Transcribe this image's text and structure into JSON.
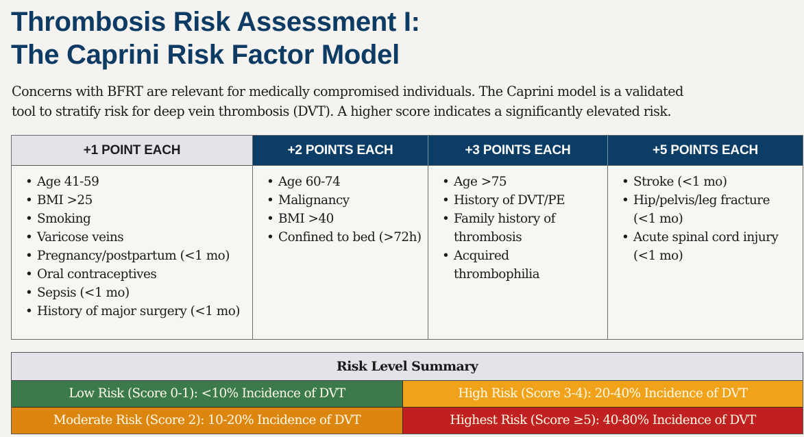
{
  "title": {
    "line1": "Thrombosis Risk Assessment I:",
    "line2": "The Caprini Risk Factor Model"
  },
  "intro": {
    "line1": "Concerns with BFRT are relevant for medically compromised individuals. The Caprini model is a validated",
    "line2": "tool to stratify risk for deep vein thrombosis (DVT). A higher score indicates a significantly elevated risk."
  },
  "factors": {
    "columns": [
      {
        "header": "+1 POINT EACH",
        "items": [
          "Age 41-59",
          "BMI >25",
          "Smoking",
          "Varicose veins",
          "Pregnancy/postpartum (<1 mo)",
          "Oral contraceptives",
          "Sepsis (<1 mo)",
          "History of major surgery (<1 mo)"
        ]
      },
      {
        "header": "+2 POINTS EACH",
        "items": [
          "Age 60-74",
          "Malignancy",
          "BMI >40",
          "Confined to bed (>72h)"
        ]
      },
      {
        "header": "+3 POINTS EACH",
        "items": [
          "Age >75",
          "History of DVT/PE",
          "Family history of thrombosis",
          "Acquired thrombophilia"
        ]
      },
      {
        "header": "+5 POINTS EACH",
        "items": [
          "Stroke (<1 mo)",
          "Hip/pelvis/leg fracture (<1 mo)",
          "Acute spinal cord injury (<1 mo)"
        ]
      }
    ]
  },
  "summary": {
    "title": "Risk Level Summary",
    "levels": [
      {
        "label": "Low Risk (Score 0-1): <10% Incidence of DVT",
        "color": "#3b7a4b"
      },
      {
        "label": "High Risk (Score 3-4): 20-40% Incidence of DVT",
        "color": "#f0a21b"
      },
      {
        "label": "Moderate Risk (Score 2): 10-20% Incidence of DVT",
        "color": "#dc850f"
      },
      {
        "label": "Highest Risk (Score ≥5): 40-80% Incidence of DVT",
        "color": "#c0201f"
      }
    ]
  },
  "colors": {
    "title": "#0d3b63",
    "header_dark": "#0b3d66",
    "header_light": "#e2e4ea",
    "background": "#f4f3ef"
  }
}
